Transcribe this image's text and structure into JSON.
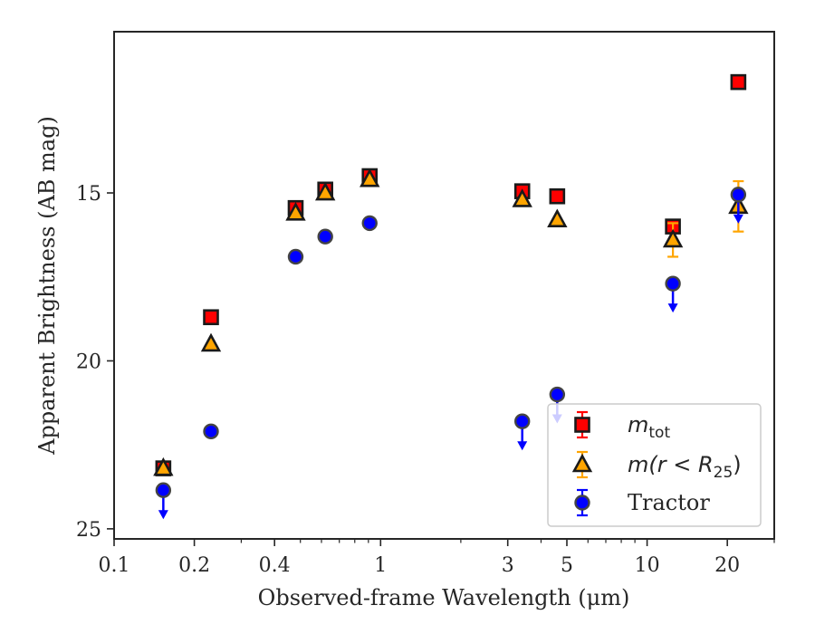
{
  "chart_data": {
    "type": "scatter",
    "xlabel": "Observed-frame Wavelength (μm)",
    "ylabel": "Apparent Brightness (AB mag)",
    "xscale": "log",
    "xlim": [
      0.1,
      30
    ],
    "ylim": [
      25.3,
      10.2
    ],
    "y_inverted": true,
    "x_ticks": [
      0.1,
      0.2,
      0.4,
      1,
      3,
      5,
      10,
      20
    ],
    "x_tick_labels": [
      "0.1",
      "0.2",
      "0.4",
      "1",
      "3",
      "5",
      "10",
      "20"
    ],
    "y_ticks": [
      15,
      20,
      25
    ],
    "y_tick_labels": [
      "15",
      "20",
      "25"
    ],
    "legend_position": "lower-right",
    "series": [
      {
        "name": "m_tot",
        "label_main": "m",
        "label_sub": "tot",
        "marker": "square",
        "color": "#ff0000",
        "edge_color": "#1a1a1a",
        "errorbar_color": "#ff0000",
        "points": [
          {
            "x": 0.153,
            "y": 23.2
          },
          {
            "x": 0.231,
            "y": 18.7
          },
          {
            "x": 0.48,
            "y": 15.45
          },
          {
            "x": 0.62,
            "y": 14.9
          },
          {
            "x": 0.91,
            "y": 14.5
          },
          {
            "x": 3.4,
            "y": 14.95
          },
          {
            "x": 4.6,
            "y": 15.1
          },
          {
            "x": 12.5,
            "y": 16.0
          },
          {
            "x": 22.0,
            "y": 11.7
          }
        ]
      },
      {
        "name": "m(r<R25)",
        "label_main": "m(r < R",
        "label_sub": "25",
        "label_tail": ")",
        "marker": "triangle",
        "color": "#ffa500",
        "edge_color": "#1a1a1a",
        "errorbar_color": "#ffa500",
        "points": [
          {
            "x": 0.153,
            "y": 23.2
          },
          {
            "x": 0.231,
            "y": 19.5
          },
          {
            "x": 0.48,
            "y": 15.6
          },
          {
            "x": 0.62,
            "y": 15.0
          },
          {
            "x": 0.91,
            "y": 14.6
          },
          {
            "x": 3.4,
            "y": 15.2
          },
          {
            "x": 4.6,
            "y": 15.8
          },
          {
            "x": 12.5,
            "y": 16.4,
            "err": 0.5
          },
          {
            "x": 22.0,
            "y": 15.4,
            "err": 0.75
          }
        ]
      },
      {
        "name": "Tractor",
        "marker": "circle",
        "color": "#0000ff",
        "edge_color": "#444444",
        "errorbar_color": "#0000ff",
        "points": [
          {
            "x": 0.153,
            "y": 23.85,
            "upper_limit": true
          },
          {
            "x": 0.231,
            "y": 22.1
          },
          {
            "x": 0.48,
            "y": 16.9
          },
          {
            "x": 0.62,
            "y": 16.3
          },
          {
            "x": 0.91,
            "y": 15.9
          },
          {
            "x": 3.4,
            "y": 21.8,
            "upper_limit": true
          },
          {
            "x": 4.6,
            "y": 21.0,
            "upper_limit": true
          },
          {
            "x": 12.5,
            "y": 17.7,
            "upper_limit": true
          },
          {
            "x": 22.0,
            "y": 15.05,
            "upper_limit": true
          }
        ]
      }
    ]
  }
}
